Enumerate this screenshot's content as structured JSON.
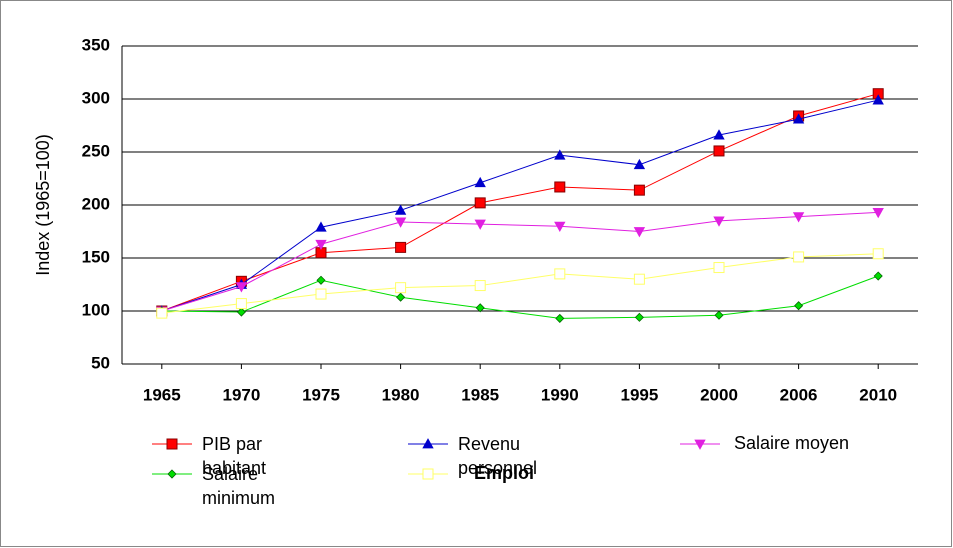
{
  "chart_data": {
    "type": "line",
    "y_label": "Index (1965=100)",
    "categories": [
      "1965",
      "1970",
      "1975",
      "1980",
      "1985",
      "1990",
      "1995",
      "2000",
      "2006",
      "2010"
    ],
    "series": [
      {
        "name": "PIB par habitant",
        "color": "#ff0000",
        "marker": "square",
        "values": [
          100,
          128,
          155,
          160,
          202,
          217,
          214,
          251,
          284,
          305
        ]
      },
      {
        "name": "Revenu personnel",
        "color": "#0000cc",
        "marker": "triangle",
        "values": [
          100,
          125,
          179,
          195,
          221,
          247,
          238,
          266,
          281,
          299
        ]
      },
      {
        "name": "Salaire moyen",
        "color": "#e020e0",
        "marker": "triangle-down",
        "values": [
          100,
          123,
          163,
          184,
          182,
          180,
          175,
          185,
          189,
          193
        ]
      },
      {
        "name": "Salaire minimum",
        "color": "#00dd00",
        "marker": "diamond",
        "values": [
          100,
          99,
          129,
          113,
          103,
          93,
          94,
          96,
          105,
          133
        ]
      },
      {
        "name": "Emploi",
        "color": "#ffff66",
        "marker": "hollow-square",
        "bold": true,
        "values": [
          98,
          107,
          116,
          122,
          124,
          135,
          130,
          141,
          151,
          154
        ]
      }
    ],
    "ylim": [
      50,
      350
    ],
    "yticks": [
      50,
      100,
      150,
      200,
      250,
      300,
      350
    ],
    "grid": true
  }
}
